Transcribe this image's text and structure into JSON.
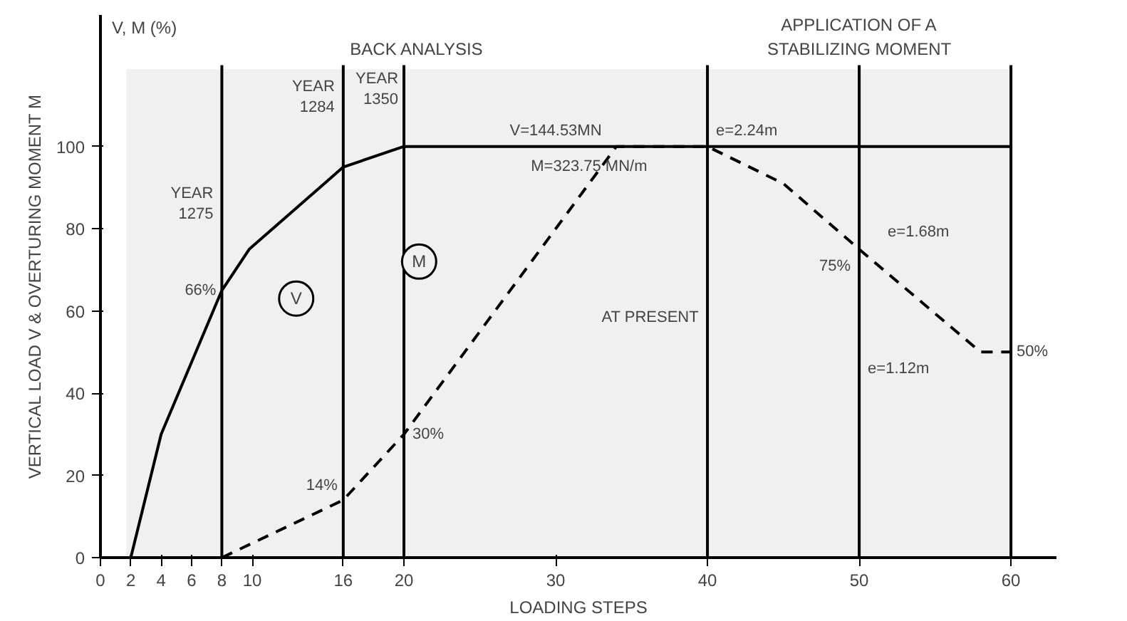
{
  "chart_data": {
    "type": "line",
    "xlabel": "LOADING STEPS",
    "ylabel": "VERTICAL LOAD V & OVERTURING MOMENT M",
    "xlim": [
      0,
      63
    ],
    "ylim": [
      0,
      132
    ],
    "xticks": [
      0,
      2,
      4,
      6,
      8,
      10,
      16,
      20,
      30,
      40,
      50,
      60
    ],
    "yticks": [
      0,
      20,
      40,
      60,
      80,
      100
    ],
    "grid": false,
    "marker": "none",
    "series": [
      {
        "name": "V",
        "color": "#000000",
        "line_style": "solid",
        "x": [
          2,
          4,
          8,
          9.8,
          16,
          20,
          60
        ],
        "values": [
          0,
          30,
          65,
          75,
          95,
          100,
          100
        ]
      },
      {
        "name": "M",
        "color": "#000000",
        "line_style": "dashed",
        "x": [
          8,
          16,
          20,
          34,
          40,
          45,
          50,
          58,
          60
        ],
        "values": [
          0,
          14,
          30,
          100,
          100,
          91,
          75,
          50,
          50
        ]
      }
    ],
    "ref_lines": [
      {
        "axis": "x",
        "value": 8,
        "label": null
      },
      {
        "axis": "x",
        "value": 16,
        "label": null
      },
      {
        "axis": "x",
        "value": 20,
        "label": null
      },
      {
        "axis": "x",
        "value": 40,
        "label": null
      },
      {
        "axis": "x",
        "value": 50,
        "label": null
      },
      {
        "axis": "x",
        "value": 60,
        "label": null
      }
    ],
    "bands": [
      {
        "axis": "x",
        "from": 1.7,
        "to": 40,
        "label": "BACK ANALYSIS"
      },
      {
        "axis": "x",
        "from": 40,
        "to": 60,
        "label": "APPLICATION OF A\nSTABILIZING MOMENT"
      }
    ],
    "annotations": [
      "V, M (%)",
      {
        "text": "YEAR\n1275",
        "x": 8,
        "y": 80
      },
      {
        "text": "YEAR\n1284",
        "x": 16,
        "y": 106
      },
      {
        "text": "YEAR\n1350",
        "x": 20,
        "y": 108
      },
      {
        "text": "AT PRESENT",
        "x": 40,
        "y": 55
      },
      {
        "text": "V=144.53MN",
        "x": 30,
        "y": 100
      },
      {
        "text": "M=323.75 MN/m",
        "x": 34,
        "y": 100
      },
      {
        "text": "e=2.24m",
        "x": 40,
        "y": 100
      },
      {
        "text": "66%",
        "x": 8,
        "y": 65
      },
      {
        "text": "14%",
        "x": 16,
        "y": 14
      },
      {
        "text": "30%",
        "x": 20,
        "y": 30
      },
      {
        "text": "75%",
        "x": 50,
        "y": 75
      },
      {
        "text": "e=1.68m",
        "x": 50,
        "y": 75
      },
      {
        "text": "e=1.12m",
        "x": 50,
        "y": 50
      },
      {
        "text": "50%",
        "x": 60,
        "y": 50
      }
    ]
  }
}
